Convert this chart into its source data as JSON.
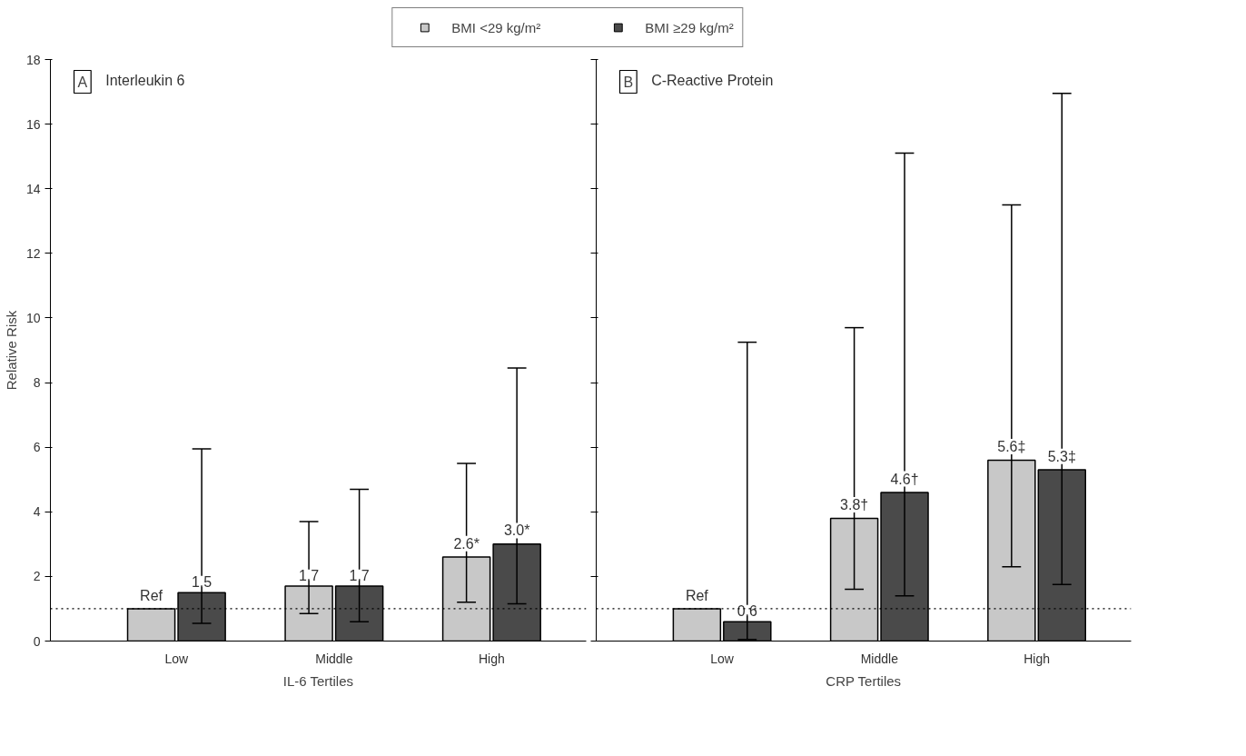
{
  "chart_data": [
    {
      "type": "bar",
      "title": "Interleukin 6",
      "annotations": [
        "A"
      ],
      "xlabel": "IL-6 Tertiles",
      "ylabel": "Relative Risk",
      "categories": [
        "Low",
        "Middle",
        "High"
      ],
      "series": [
        {
          "name": "BMI <29 kg/m²",
          "color": "#c8c8c8",
          "values": [
            1,
            1.7,
            2.6
          ],
          "errors": [
            null,
            [
              0.85,
              3.7
            ],
            [
              1.2,
              5.5
            ]
          ],
          "value_labels": [
            "Ref",
            "1.7",
            "2.6*"
          ]
        },
        {
          "name": "BMI ≥29 kg/m²",
          "color": "#4a4a4a",
          "values": [
            1.5,
            1.7,
            3.0
          ],
          "errors": [
            [
              0.55,
              5.95
            ],
            [
              0.6,
              4.7
            ],
            [
              1.15,
              8.45
            ]
          ],
          "value_labels": [
            "1.5",
            "1.7",
            "3.0*"
          ]
        }
      ],
      "ylim": [
        0,
        18
      ],
      "yticks": [
        0,
        2,
        4,
        6,
        8,
        10,
        12,
        14,
        16,
        18
      ],
      "ref_lines": [
        {
          "axis": "y",
          "value": 1,
          "line_style": "dotted"
        }
      ],
      "legend": "top",
      "grid": false
    },
    {
      "type": "bar",
      "title": "C-Reactive Protein",
      "annotations": [
        "B"
      ],
      "xlabel": "CRP Tertiles",
      "categories": [
        "Low",
        "Middle",
        "High"
      ],
      "series": [
        {
          "name": "BMI <29 kg/m²",
          "color": "#c8c8c8",
          "values": [
            1,
            3.8,
            5.6
          ],
          "errors": [
            null,
            [
              1.6,
              9.7
            ],
            [
              2.3,
              13.5
            ]
          ],
          "value_labels": [
            "Ref",
            "3.8†",
            "5.6‡"
          ]
        },
        {
          "name": "BMI ≥29 kg/m²",
          "color": "#4a4a4a",
          "values": [
            0.6,
            4.6,
            5.3
          ],
          "errors": [
            [
              0.05,
              9.25
            ],
            [
              1.4,
              15.1
            ],
            [
              1.75,
              16.95
            ]
          ],
          "value_labels": [
            "0.6",
            "4.6†",
            "5.3‡"
          ]
        }
      ],
      "ylim": [
        0,
        18
      ],
      "yticks": [
        0,
        2,
        4,
        6,
        8,
        10,
        12,
        14,
        16,
        18
      ],
      "tick_labels": "x",
      "ref_lines": [
        {
          "axis": "y",
          "value": 1,
          "line_style": "dotted"
        }
      ],
      "grid": false
    }
  ]
}
